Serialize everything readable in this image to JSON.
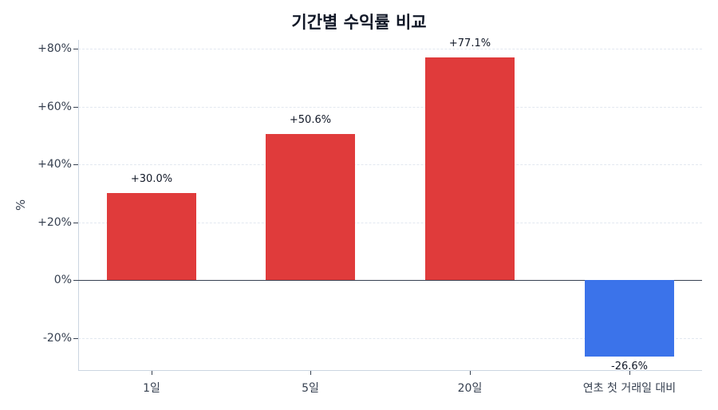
{
  "chart": {
    "title": "기간별 수익률 비교",
    "ylabel": "%",
    "yticks": [
      {
        "value": 80,
        "label": "+80%"
      },
      {
        "value": 60,
        "label": "+60%"
      },
      {
        "value": 40,
        "label": "+40%"
      },
      {
        "value": 20,
        "label": "+20%"
      },
      {
        "value": 0,
        "label": "0%"
      },
      {
        "value": -20,
        "label": "-20%"
      }
    ],
    "bars": [
      {
        "category": "1일",
        "value": 30.0,
        "label": "+30.0%",
        "color": "#e03b3b"
      },
      {
        "category": "5일",
        "value": 50.6,
        "label": "+50.6%",
        "color": "#e03b3b"
      },
      {
        "category": "20일",
        "value": 77.1,
        "label": "+77.1%",
        "color": "#e03b3b"
      },
      {
        "category": "연초 첫 거래일 대비",
        "value": -26.6,
        "label": "-26.6%",
        "color": "#3b73ea"
      }
    ]
  },
  "chart_data": {
    "type": "bar",
    "title": "기간별 수익률 비교",
    "xlabel": "",
    "ylabel": "%",
    "categories": [
      "1일",
      "5일",
      "20일",
      "연초 첫 거래일 대비"
    ],
    "values": [
      30.0,
      50.6,
      77.1,
      -26.6
    ],
    "data_labels": [
      "+30.0%",
      "+50.6%",
      "+77.1%",
      "-26.6%"
    ],
    "colors": {
      "positive": "#e03b3b",
      "negative": "#3b73ea"
    },
    "ylim": [
      -31.5,
      83
    ],
    "yticks": [
      -20,
      0,
      20,
      40,
      60,
      80
    ],
    "ytick_labels": [
      "-20%",
      "0%",
      "+20%",
      "+40%",
      "+60%",
      "+80%"
    ],
    "grid": {
      "y": true,
      "style": "dashed"
    },
    "legend": null
  }
}
